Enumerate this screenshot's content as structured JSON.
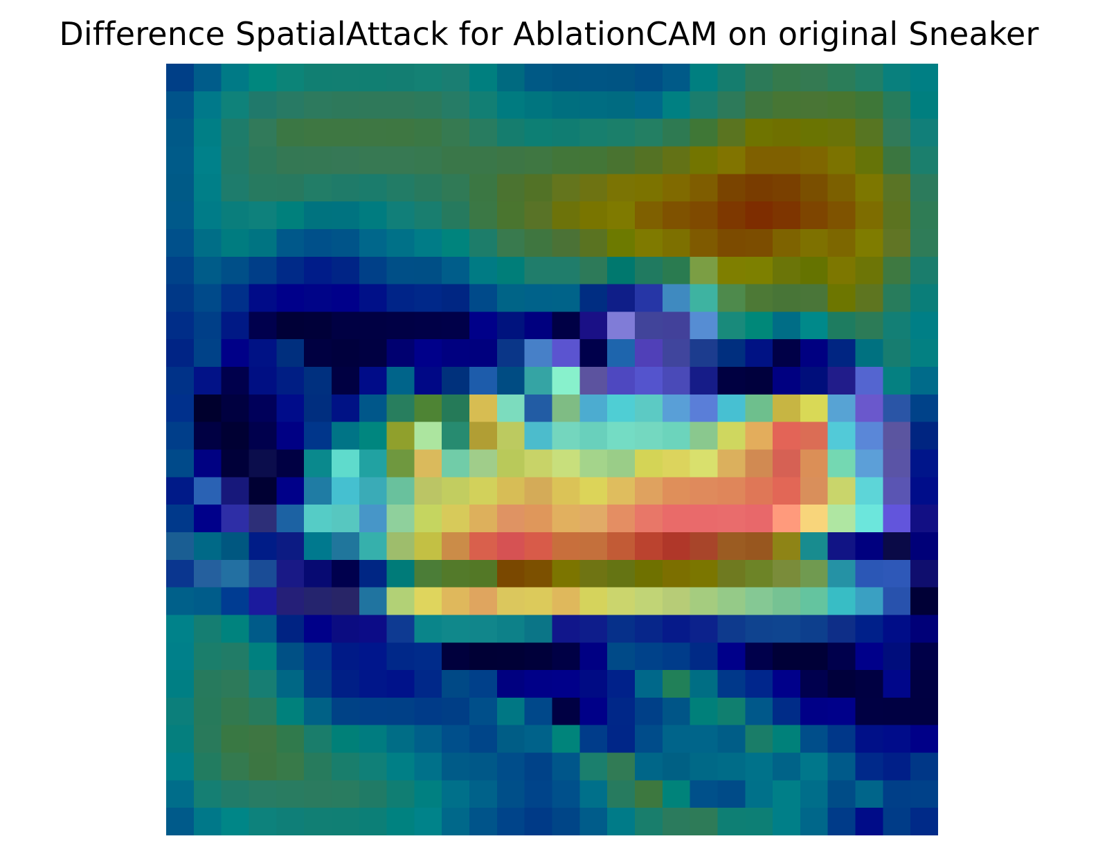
{
  "chart_data": {
    "type": "heatmap",
    "title": "Difference SpatialAttack for AblationCAM on original Sneaker",
    "rows": 28,
    "cols": 28,
    "axes_visible": false,
    "grid": false,
    "legend": "none",
    "colors": [
      "#003f87 #005c8a #007a86 #00877e #0c8478 #117f72 #127f72 #117f72 #137e72 #148174 #1a7e72 #007f7f #006a80 #005985 #005583 #005584 #005483 #004f86 #005a88 #007f80 #157d6e #2c7a58 #357a4c #347a52 #2b7d59 #217f66 #09807d #007f84",
      "#00538a #00798a #0f827a #20796b #287a64 #2d7a5e #2e795b #2f795a #2f795a #2c7a5c #267c66 #127f74 #007b80 #00757f #006f7f #006d82 #006b81 #00698a #008082 #1a7d6d #2d7a5a #3f763e #477634 #497535 #487630 #3e7738 #267c5c #007f7f",
      "#005988 #007f86 #1e7c6a #317a5a #3b7744 #3e7742 #3e7742 #3e7743 #3e7742 #3b7845 #367a51 #287c60 #157d6e #0d7f74 #107d72 #177f6e #1b7f6a #237f63 #2e7a52 #3f7736 #5a7420 #6f7400 #6f7000 #6a7402 #6a7308 #577522 #317a59 #117f79",
      "#005b89 #00818a #207b68 #2c795b #347854 #357854 #367856 #377953 #377953 #377950 #3a7749 #3a7749 #3d7645 #3f7742 #427639 #437637 #497330 #547224 #637216 #737500 #817400 #7f6000 #7f6000 #7f6600 #7c7300 #667408 #3b7640 #1b7f6d",
      "#005a87 #007f88 #1e7c6c #277a60 #28795f #227d67 #1f7b69 #1b7c6c #227c66 #287a5e #307a56 #3b7743 #4b7330 #527226 #64751d #6e7312 #7b7404 #7c7300 #806a00 #7f5d00 #7a4400 #793c00 #7a4000 #7a4f00 #7c6000 #7d7700 #5a7425 #2c7b5c",
      "#00598a #007c88 #0a7e7c #0e817c #00807c #00737f #007380 #007c80 #117f79 #197e6f #267a5e #3b7845 #4a752f #597327 #6d730a #797500 #7f7a00 #7f6000 #7f5200 #7f4a00 #7e3800 #7e2d00 #7e3500 #7e4500 #7f5300 #7e6d00 #5c7320 #2f7c55",
      "#00508b #006e87 #007c80 #007482 #00588a #00508a #005489 #00678b #007188 #007c87 #00847d #1d7d6a #397a4e #3f7640 #4b7236 #5a7321 #6d7a00 #7f7a00 #7d7000 #7f5a00 #7c4b00 #7c4d00 #7e6300 #7e7100 #7d6700 #7f7c00 #617525 #2f7c58",
      "#004289 #005c89 #004f88 #003e88 #002a88 #001c89 #002486 #004088 #004f87 #004f86 #005d8a #007b84 #007e79 #207d6b #207d6b #2d7a59 #00786e #207a60 #2a7b50 #7b9e44 #7f7f00 #7d8000 #6b7508 #657300 #7d7700 #6d7506 #3e7941 #1a7d6c",
      "#003887 #004a8a #00308a #000b88 #00008a #000488 #00008a #001088 #002488 #002889 #002683 #004a8a #006487 #00628a #006389 #002d82 #0f1e88 #2636a6 #3f8ac0 #3eb3a1 #4e8a4c #4d7936 #487537 #4a7639 #6d7600 #5e7520 #287c5c #0a7e79",
      "#002d88 #003f88 #001985 #00004d #000037 #000039 #000043 #000043 #000045 #000047 #000049 #000089 #00137e #00007f #000045 #1a1086 #807cd7 #41449a #42419a #568dd3 #198a7b #008879 #006d86 #00898a #1e7c60 #2c7b57 #137f75 #007f86",
      "#002485 #004288 #000088 #001285 #002f7e #000041 #00003d #000042 #000070 #00008a #000080 #00007e #0a3688 #4780c8 #5b54d0 #00004b #1e65ad #5040b8 #40459d #1c3c8e #002f7f #001284 #000047 #000081 #002582 #007180 #177d70 #038082",
      "#003288 #021287 #00004c #000f83 #001e84 #00307f #000042 #000c88 #00648a #000886 #00317c #1d5cab #004c83 #35a4a4 #88f1cc #5c539f #4e48c0 #5454cd #4a4ab8 #161c88 #000041 #00003d #000081 #000e7b #211c8a #5465d0 #058081 #006b8a",
      "#00308c #00002d #000040 #00005a #000c8a #002e7f #001285 #00578a #287e5e #4e8434 #257a58 #d7bd52 #7cdcbe #225ca4 #7fbc84 #4cacd0 #4fced4 #5ccac4 #599fd7 #5a7ed8 #47c0d2 #6ebf8d #c7b543 #d9d956 #57a3d4 #6a58cc #2a55a6 #004289",
      "#003e8a #000043 #000033 #00004d #000084 #00368b #007486 #00867f #90a02c #ace59f #278b70 #b19e34 #bcca60 #4cbccc #74d6be #69d0bc #74dcc4 #74d8c0 #6cd4bc #8ac88e #cfd75f #e3ad5c #e36457 #db6d55 #52cad8 #5a87d8 #5b55a0 #002581",
      "#004a8a #000182 #000039 #0b0d4c #000043 #0a898d #5fdbcc #21a2a2 #6f983f #daba5c #71cca8 #a0cd8a #b9c95a #c8d368 #c8df7c #a4d48b #9acd88 #d4d456 #dcd45d #d9e06d #dbb05d #d18a52 #d66154 #db8f57 #74d8b2 #5c9fd8 #5a54a6 #00158a",
      "#001a88 #2a62b4 #17187b #000033 #000089 #1f7ca4 #45c0d0 #3aabb7 #69c19d #bbc565 #c2cd60 #d2d15b #d7bd56 #d4ab58 #dbc357 #dcd459 #dfbd5e #dfa25f #df8f5a #df8a5c #df865a #df7757 #e26756 #d98f5b #c9d56b #5dd5d8 #5a55b3 #000d8a",
      "#00398b #00008a #2e2ea6 #2d2f78 #1c62a3 #55ccc6 #57c7c0 #4796c8 #8fd09c #c5d560 #d7ca5a #ddb05c #df9363 #df975b #e1b05f #e1ab67 #e48e63 #e87768 #e96b69 #e96a6b #e96c6c #e8686a #ff9a7c #f8d57b #afe6a2 #6ce6dc #6255dc #120f84",
      "#1a5e93 #006987 #005780 #001c87 #0c1b83 #00798e #20769c #36b0ac #9ebd6c #c3c044 #cb8c48 #d9604c #d65253 #d85b49 #c86f3c #c4703c #c25b36 #bb432f #b03729 #a8452a #9b5c22 #98571f #8e8416 #188c8f #111485 #00007f #0a0a47 #000078",
      "#0a368f #25609e #2370a2 #1a4c96 #191986 #070a72 #00004d #002684 #007b79 #4b7d37 #537a2a #537826 #7a4800 #7c5000 #7c7500 #6f7413 #657413 #6f7100 #7c6f00 #7b7600 #6f7a20 #6d8427 #7a8c3a #709a50 #2592a5 #2b57b6 #2e58b8 #0f0e6e",
      "#00608a #005c8a #003c92 #1b1a9d #251f78 #25246e #282567 #2074a0 #b2d176 #dfd55d #dfb85c #dfa55f #dbc75d #dcca5b #dfb85c #d5d35c #cbd56d #c1d476 #b7cc77 #a5cc7f #95ca88 #85c894 #76c293 #64c49f #38bdc5 #3aa0c2 #2852ad #000036",
      "#00828a #157e72 #00837e #005b89 #002383 #000089 #0b0c81 #0c0c87 #0e3a92 #0a858a #10888b #11868b #0d8189 #0b7587 #11168b #0e1d8b #06308a #07268a #061a8a #0c228c #0e3a8d #0f438f #0f4590 #0d3f8d #0e2e88 #00208a #000d88 #000078",
      "#00808a #1b7e6b #217c67 #00807f #005085 #00368c #001a87 #00168c #002889 #002b8a #00003d #000035 #000036 #00003a #000045 #000083 #004a88 #00428a #003c8a #002a86 #00008a #00004b #000037 #000037 #00004c #00008a #000d7c #000048",
      "#007f84 #277a5d #2d7a5a #177e73 #006785 #003b88 #001f86 #00168a #00128a #002889 #004986 #00408a #000080 #000088 #00008a #000b84 #00218a #00688a #218058 #006e84 #00388a #00268c #00008a #00004e #00003b #000042 #00068a #000042",
      "#0c7f7b #277a5b #32794f #277b5d #00817c #006186 #004286 #004088 #004087 #003b88 #003e86 #004f8a #007784 #00488a #000043 #000088 #002788 #004088 #005587 #00807a #107f6f #00588a #002c88 #000087 #00008a #000043 #000042 #000041",
      "#057f7e #297a5b #397843 #3e7642 #307a4c #1a7d6b #008078 #007c80 #006d86 #005f8a #004f8b #004589 #005d86 #00628a #00847b #003c8a #002688 #004c8a #00648a #00658a #005d87 #1a7d68 #00817a #004e8a #003789 #001088 #000c8a #000088",
      "#007f88 #227c60 #347a4f #3c7642 #387a49 #277b5d #197e6c #108078 #007f86 #00718a #005b88 #005888 #004d8a #004288 #00568a #1b7f6d #317b55 #006688 #006084 #006987 #006c88 #00728a #006388 #00778b #005a8a #00298a #001f88 #003787",
      "#006d8a #157f73 #217c69 #287c64 #297c61 #2b7b5f #297c60 #207b66 #107e73 #008081 #00708a #00628a #004f89 #00448a #00508b #00708a #277b5f #3d783f #00837a #00508a #004b88 #00718a #007f88 #006e8a #004c87 #00658a #003f88 #004189",
      "#005a8a #007889 #008687 #0d827c #0f7f78 #117f74 #107f74 #0c7f77 #008280 #00838a #00688a #00548a #00448a #003a87 #004587 #005c8a #007b88 #197e6c #2b7b5d #2e7b58 #0e7f74 #0d7f75 #007f88 #00678a #003b89 #000c88 #003c88 #002a88"
    ]
  }
}
